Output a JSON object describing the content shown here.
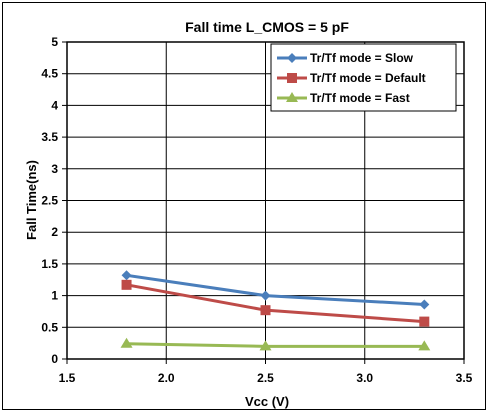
{
  "chart_data": {
    "type": "line",
    "title": "Fall time  L_CMOS = 5 pF",
    "xlabel": "Vcc (V)",
    "ylabel": "Fall Time(ns)",
    "xlim": [
      1.5,
      3.5
    ],
    "ylim": [
      0,
      5
    ],
    "xticks": [
      "1.5",
      "2.0",
      "2.5",
      "3.0",
      "3.5"
    ],
    "yticks": [
      "0",
      "0.5",
      "1",
      "1.5",
      "2",
      "2.5",
      "3",
      "3.5",
      "4",
      "4.5",
      "5"
    ],
    "grid": true,
    "legend_position": "top-right",
    "x": [
      1.8,
      2.5,
      3.3
    ],
    "series": [
      {
        "name": "Tr/Tf mode = Slow",
        "values": [
          1.32,
          1.0,
          0.86
        ],
        "color": "#4a7ebb",
        "marker": "diamond"
      },
      {
        "name": "Tr/Tf mode = Default",
        "values": [
          1.17,
          0.77,
          0.59
        ],
        "color": "#be4b48",
        "marker": "square"
      },
      {
        "name": "Tr/Tf mode = Fast",
        "values": [
          0.24,
          0.2,
          0.2
        ],
        "color": "#98b954",
        "marker": "triangle"
      }
    ]
  }
}
